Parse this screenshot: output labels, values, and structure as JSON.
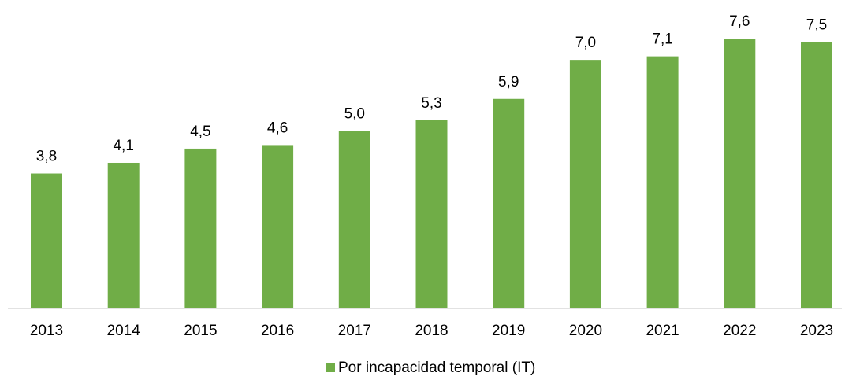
{
  "chart_data": {
    "type": "bar",
    "categories": [
      "2013",
      "2014",
      "2015",
      "2016",
      "2017",
      "2018",
      "2019",
      "2020",
      "2021",
      "2022",
      "2023"
    ],
    "series": [
      {
        "name": "Por incapacidad temporal (IT)",
        "color": "#70ad47",
        "values": [
          3.8,
          4.1,
          4.5,
          4.6,
          5.0,
          5.3,
          5.9,
          7.0,
          7.1,
          7.6,
          7.5
        ],
        "value_labels": [
          "3,8",
          "4,1",
          "4,5",
          "4,6",
          "5,0",
          "5,3",
          "5,9",
          "7,0",
          "7,1",
          "7,6",
          "7,5"
        ]
      }
    ],
    "ylim": [
      0,
      8
    ],
    "legend": "bottom"
  }
}
